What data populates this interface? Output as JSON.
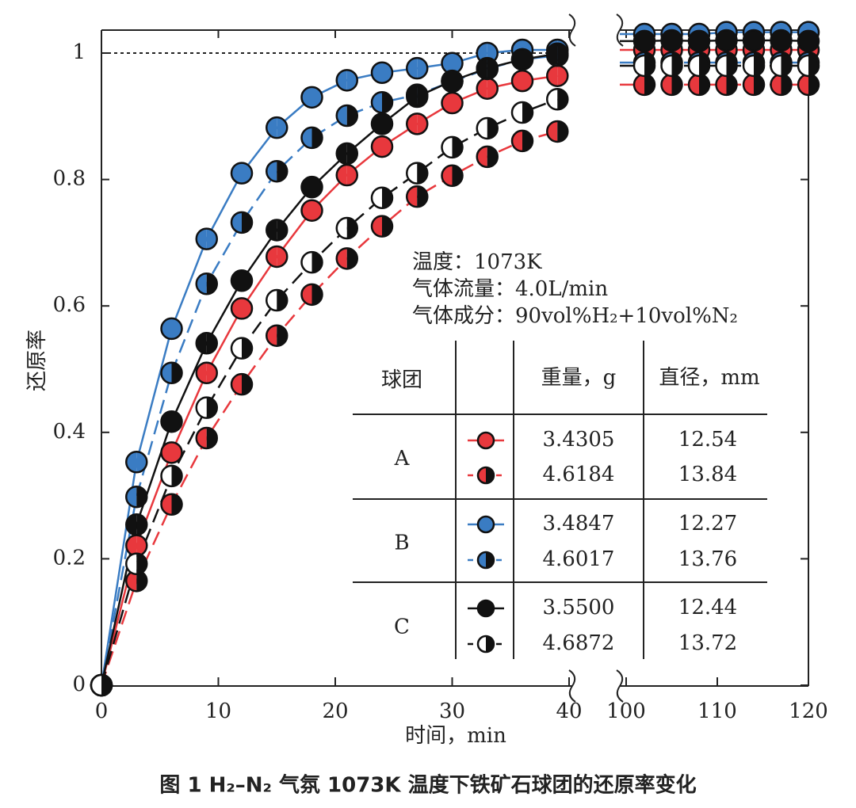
{
  "chart_data": {
    "type": "line",
    "caption": "图 1  H₂–N₂ 气氛 1073K 温度下铁矿石球团的还原率变化",
    "xlabel": "时间，min",
    "ylabel": "还原率",
    "x": [
      0,
      3,
      6,
      9,
      12,
      15,
      18,
      21,
      24,
      27,
      30,
      33,
      36,
      39,
      102,
      105,
      108,
      111,
      114,
      117,
      120
    ],
    "xlim": [
      0,
      120
    ],
    "axis_break": [
      40,
      100
    ],
    "xticks": [
      0,
      10,
      20,
      30,
      40,
      100,
      110,
      120
    ],
    "ylim": [
      0,
      1.04
    ],
    "yticks": [
      0,
      0.2,
      0.4,
      0.6,
      0.8,
      1
    ],
    "hline": 1,
    "annotations": [
      "温度：1073K",
      "气体流量：4.0L/min",
      "气体成分：90vol%H₂+10vol%N₂"
    ],
    "table_headers": [
      "球团",
      "重量，g",
      "直径，mm"
    ],
    "groups": [
      "A",
      "B",
      "C"
    ],
    "series": [
      {
        "color": "#e8383d",
        "marker": "full",
        "marker_colors": [
          "#e8383d",
          "#e8383d"
        ],
        "dash": false,
        "weight": "3.4305",
        "diameter": "12.54",
        "values": [
          0,
          0.221,
          0.368,
          0.494,
          0.596,
          0.678,
          0.751,
          0.807,
          0.852,
          0.888,
          0.921,
          0.944,
          0.956,
          0.964,
          1.005,
          1.005,
          1.005,
          1.005,
          1.005,
          1.005,
          1.005
        ]
      },
      {
        "color": "#e8383d",
        "marker": "half",
        "marker_colors": [
          "#e8383d",
          "#111111"
        ],
        "dash": true,
        "weight": "4.6184",
        "diameter": "13.84",
        "values": [
          0,
          0.165,
          0.286,
          0.391,
          0.476,
          0.553,
          0.618,
          0.675,
          0.726,
          0.773,
          0.806,
          0.836,
          0.861,
          0.876,
          0.95,
          0.95,
          0.95,
          0.95,
          0.95,
          0.95,
          0.95
        ]
      },
      {
        "color": "#3a7cc3",
        "marker": "full",
        "marker_colors": [
          "#3a7cc3",
          "#3a7cc3"
        ],
        "dash": false,
        "weight": "3.4847",
        "diameter": "12.27",
        "values": [
          0,
          0.353,
          0.564,
          0.706,
          0.81,
          0.882,
          0.93,
          0.957,
          0.969,
          0.976,
          0.984,
          1.0,
          1.005,
          1.005,
          1.03,
          1.03,
          1.03,
          1.033,
          1.033,
          1.033,
          1.033
        ]
      },
      {
        "color": "#3a7cc3",
        "marker": "half",
        "marker_colors": [
          "#3a7cc3",
          "#111111"
        ],
        "dash": true,
        "weight": "4.6017",
        "diameter": "13.76",
        "values": [
          0,
          0.298,
          0.494,
          0.635,
          0.732,
          0.813,
          0.866,
          0.901,
          0.922,
          0.934,
          0.955,
          0.975,
          0.99,
          0.996,
          0.985,
          0.985,
          0.985,
          0.985,
          0.985,
          0.985,
          0.985
        ]
      },
      {
        "color": "#111111",
        "marker": "full",
        "marker_colors": [
          "#111111",
          "#111111"
        ],
        "dash": false,
        "weight": "3.5500",
        "diameter": "12.44",
        "values": [
          0,
          0.254,
          0.417,
          0.541,
          0.64,
          0.72,
          0.788,
          0.841,
          0.888,
          0.931,
          0.956,
          0.976,
          0.99,
          0.999,
          1.019,
          1.02,
          1.019,
          1.02,
          1.02,
          1.02,
          1.019
        ]
      },
      {
        "color": "#111111",
        "marker": "half",
        "marker_colors": [
          "#ffffff",
          "#111111"
        ],
        "dash": true,
        "weight": "4.6872",
        "diameter": "13.72",
        "values": [
          0,
          0.192,
          0.331,
          0.439,
          0.533,
          0.609,
          0.669,
          0.723,
          0.771,
          0.81,
          0.851,
          0.881,
          0.906,
          0.927,
          0.98,
          0.98,
          0.98,
          0.98,
          0.98,
          0.98,
          0.98
        ]
      }
    ]
  }
}
